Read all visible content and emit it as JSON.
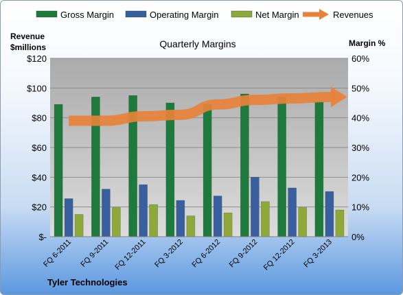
{
  "chart_data": {
    "type": "bar",
    "title": "Quarterly Margins",
    "left_axis_title_line1": "Revenue",
    "left_axis_title_line2": "$millions",
    "right_axis_title": "Margin %",
    "footer": "Tyler Technologies",
    "categories": [
      "FQ 6-2011",
      "FQ 9-2011",
      "FQ 12-2011",
      "FQ 3-2012",
      "FQ 6-2012",
      "FQ 9-2012",
      "FQ 12-2012",
      "FQ 3-2013"
    ],
    "left_ylim": [
      0,
      120
    ],
    "right_ylim": [
      0,
      60
    ],
    "left_ticks": [
      "$-",
      "$20",
      "$40",
      "$60",
      "$80",
      "$100",
      "$120"
    ],
    "right_ticks": [
      "0%",
      "10%",
      "20%",
      "30%",
      "40%",
      "50%",
      "60%"
    ],
    "grid": true,
    "legend_position": "top",
    "series": [
      {
        "name": "Gross Margin",
        "kind": "bar",
        "axis": "right",
        "color": "#1e7a3c",
        "values": [
          44.5,
          47,
          47.5,
          45,
          44.5,
          48,
          47,
          45.5
        ]
      },
      {
        "name": "Operating Margin",
        "kind": "bar",
        "axis": "right",
        "color": "#3a5f9e",
        "values": [
          12.8,
          16,
          17.5,
          12.2,
          13.7,
          20,
          16.4,
          15.2
        ]
      },
      {
        "name": "Net Margin",
        "kind": "bar",
        "axis": "right",
        "color": "#8fa83a",
        "values": [
          7.5,
          9.8,
          10.8,
          7,
          8,
          11.8,
          9.8,
          9
        ]
      },
      {
        "name": "Revenues",
        "kind": "line",
        "axis": "left",
        "color": "#e8823a",
        "values": [
          78,
          78,
          81,
          82,
          89,
          92,
          93,
          94
        ]
      }
    ]
  }
}
